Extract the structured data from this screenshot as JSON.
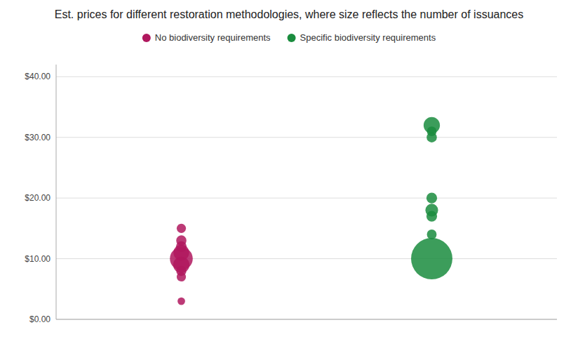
{
  "chart_data": {
    "type": "bubble",
    "title": "Est. prices for different restoration methodologies, where size reflects the number of issuances",
    "series": [
      {
        "name": "No biodiversity requirements",
        "color": "#B0185E",
        "values": [
          3,
          7,
          8,
          9,
          10,
          11,
          12,
          13,
          15
        ],
        "sizes": [
          60,
          90,
          110,
          280,
          550,
          260,
          120,
          110,
          90
        ]
      },
      {
        "name": "Specific biodiversity requirements",
        "color": "#1A8C3E",
        "values": [
          10,
          14,
          17,
          18,
          20,
          30,
          31,
          32
        ],
        "sizes": [
          1800,
          100,
          120,
          170,
          120,
          110,
          100,
          280
        ]
      }
    ],
    "ylim": [
      0,
      42
    ],
    "yticks": [
      {
        "value": 0,
        "label": "$0.00"
      },
      {
        "value": 10,
        "label": "$10.00"
      },
      {
        "value": 20,
        "label": "$20.00"
      },
      {
        "value": 30,
        "label": "$30.00"
      },
      {
        "value": 40,
        "label": "$40.00"
      }
    ],
    "grid": true,
    "legend": "top",
    "tick_labels": "y"
  }
}
